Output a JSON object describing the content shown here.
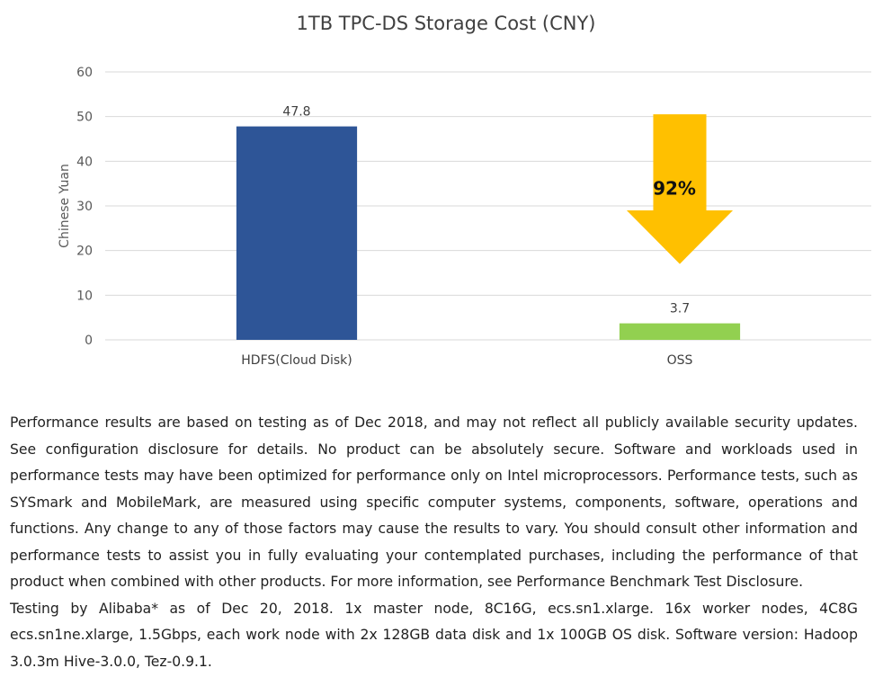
{
  "chart_data": {
    "type": "bar",
    "title": "1TB TPC-DS Storage Cost (CNY)",
    "ylabel": "Chinese Yuan",
    "xlabel": "",
    "categories": [
      "HDFS(Cloud Disk)",
      "OSS"
    ],
    "values": [
      47.8,
      3.7
    ],
    "value_labels": [
      "47.8",
      "3.7"
    ],
    "bar_colors": [
      "#2e5597",
      "#92d050"
    ],
    "ylim": [
      0,
      60
    ],
    "yticks": [
      0,
      10,
      20,
      30,
      40,
      50,
      60
    ],
    "grid": true,
    "legend": "none",
    "annotation": {
      "text": "92%",
      "shape": "down-arrow",
      "color": "#ffc000",
      "category": "OSS",
      "from_value": 50.5,
      "to_value": 17
    }
  },
  "footnote": {
    "paragraph1": "Performance results are based on testing as of Dec 2018, and may not reflect all publicly available security updates. See configuration disclosure for details. No product can be absolutely secure. Software and workloads used in performance tests may have been optimized for performance only on Intel microprocessors. Performance tests, such as SYSmark and MobileMark, are measured using specific computer systems, components, software, operations and functions. Any change to any of those factors may cause the results to vary. You should consult other information and performance tests to assist you in fully evaluating your contemplated purchases, including the performance of that product when combined with other products. For more information, see Performance Benchmark Test Disclosure.",
    "paragraph2": "Testing by Alibaba* as of Dec 20, 2018. 1x master node, 8C16G, ecs.sn1.xlarge. 16x worker nodes, 4C8G ecs.sn1ne.xlarge, 1.5Gbps, each work node with 2x 128GB data disk and 1x 100GB OS disk. Software version: Hadoop 3.0.3m Hive-3.0.0, Tez-0.9.1."
  }
}
